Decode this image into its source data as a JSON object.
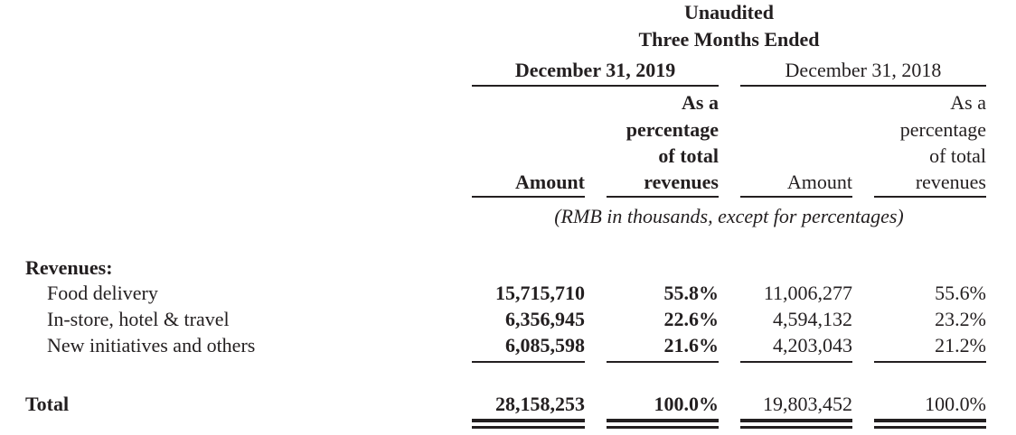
{
  "header": {
    "line1": "Unaudited",
    "line2": "Three Months Ended",
    "period_2019": "December 31, 2019",
    "period_2018": "December 31, 2018",
    "col_amount": "Amount",
    "col_pct": [
      "As a",
      "percentage",
      "of total",
      "revenues"
    ],
    "units": "(RMB in thousands, except for percentages)"
  },
  "section": "Revenues:",
  "rows": [
    {
      "label": "Food delivery",
      "amt2019": "15,715,710",
      "pct2019": "55.8%",
      "amt2018": "11,006,277",
      "pct2018": "55.6%"
    },
    {
      "label": "In-store, hotel & travel",
      "amt2019": "6,356,945",
      "pct2019": "22.6%",
      "amt2018": "4,594,132",
      "pct2018": "23.2%"
    },
    {
      "label": "New initiatives and others",
      "amt2019": "6,085,598",
      "pct2019": "21.6%",
      "amt2018": "4,203,043",
      "pct2018": "21.2%"
    }
  ],
  "total": {
    "label": "Total",
    "amt2019": "28,158,253",
    "pct2019": "100.0%",
    "amt2018": "19,803,452",
    "pct2018": "100.0%"
  }
}
